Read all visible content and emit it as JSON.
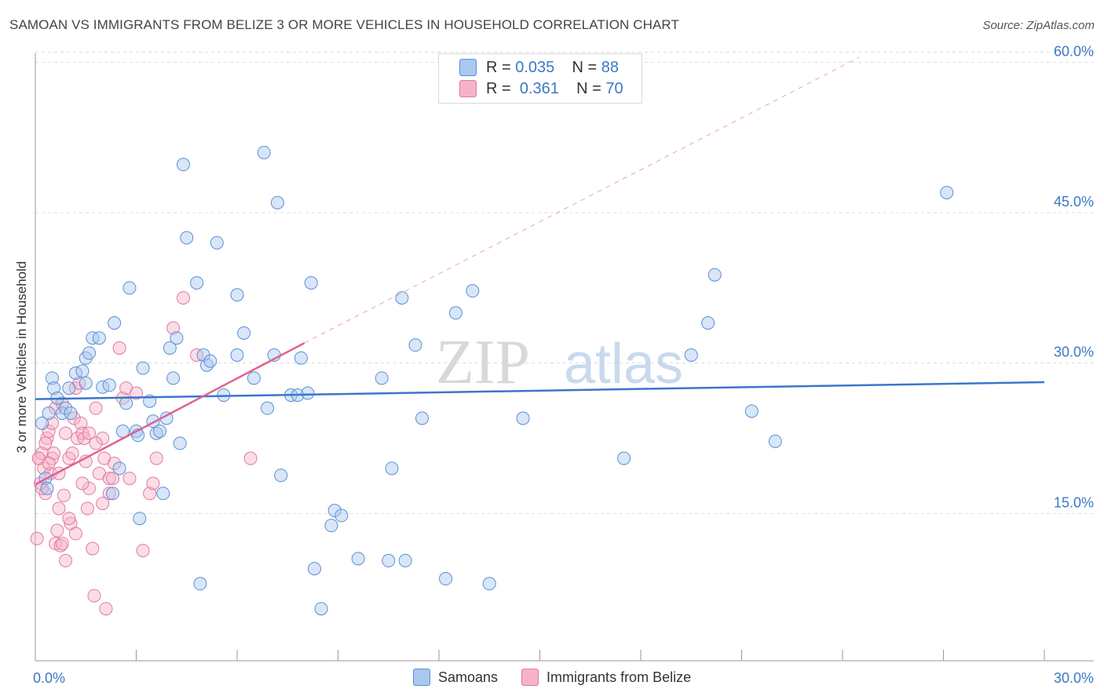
{
  "header": {
    "title": "SAMOAN VS IMMIGRANTS FROM BELIZE 3 OR MORE VEHICLES IN HOUSEHOLD CORRELATION CHART",
    "source": "Source: ZipAtlas.com"
  },
  "watermark": {
    "zip": "ZIP",
    "atlas": "atlas"
  },
  "legend": {
    "rows": [
      {
        "r_label": "R =",
        "r_value": "0.035",
        "n_label": "N =",
        "n_value": "88"
      },
      {
        "r_label": "R =",
        "r_value": "0.361",
        "n_label": "N =",
        "n_value": "70"
      }
    ]
  },
  "colors": {
    "blue_fill": "#a9c8f0",
    "blue_stroke": "#5b8fd4",
    "blue_line": "#3a76cc",
    "pink_fill": "#f6b3c8",
    "pink_stroke": "#e07aa0",
    "pink_line": "#e0628e",
    "grid": "#dddddd",
    "tick_label": "#3b78c4"
  },
  "chart_data": {
    "type": "scatter",
    "title": "SAMOAN VS IMMIGRANTS FROM BELIZE 3 OR MORE VEHICLES IN HOUSEHOLD CORRELATION CHART",
    "xlabel": "",
    "ylabel": "3 or more Vehicles in Household",
    "xlim": [
      0,
      30
    ],
    "ylim": [
      0,
      62
    ],
    "x_tick_labels": [
      {
        "value": 0,
        "label": "0.0%"
      },
      {
        "value": 30,
        "label": "30.0%"
      }
    ],
    "y_tick_labels": [
      {
        "value": 15,
        "label": "15.0%"
      },
      {
        "value": 30,
        "label": "30.0%"
      },
      {
        "value": 45,
        "label": "45.0%"
      },
      {
        "value": 60,
        "label": "60.0%"
      }
    ],
    "series": [
      {
        "name": "Samoans",
        "trend": {
          "x0": 0,
          "y0": 26.4,
          "x1": 30,
          "y1": 28.1
        },
        "points": [
          [
            0.2,
            24
          ],
          [
            0.3,
            18.5
          ],
          [
            0.35,
            17.5
          ],
          [
            0.4,
            25
          ],
          [
            0.5,
            28.5
          ],
          [
            0.55,
            27.5
          ],
          [
            0.65,
            26.5
          ],
          [
            0.8,
            25
          ],
          [
            0.9,
            25.5
          ],
          [
            1.0,
            27.5
          ],
          [
            1.05,
            25
          ],
          [
            1.2,
            29
          ],
          [
            1.5,
            28
          ],
          [
            1.4,
            29.2
          ],
          [
            1.5,
            30.5
          ],
          [
            1.6,
            31
          ],
          [
            1.7,
            32.5
          ],
          [
            1.9,
            32.5
          ],
          [
            2.0,
            27.6
          ],
          [
            2.2,
            27.8
          ],
          [
            2.3,
            17
          ],
          [
            2.35,
            34
          ],
          [
            2.5,
            19.5
          ],
          [
            2.6,
            23.2
          ],
          [
            2.7,
            26
          ],
          [
            2.8,
            37.5
          ],
          [
            3.0,
            23.2
          ],
          [
            3.05,
            22.8
          ],
          [
            3.1,
            14.5
          ],
          [
            3.2,
            29.5
          ],
          [
            3.4,
            26.2
          ],
          [
            3.5,
            24.2
          ],
          [
            3.6,
            23
          ],
          [
            3.7,
            23.2
          ],
          [
            3.8,
            17
          ],
          [
            3.9,
            24.5
          ],
          [
            4.0,
            31.5
          ],
          [
            4.1,
            28.5
          ],
          [
            4.2,
            32.5
          ],
          [
            4.3,
            22
          ],
          [
            4.4,
            49.8
          ],
          [
            4.5,
            42.5
          ],
          [
            4.8,
            38
          ],
          [
            4.9,
            8
          ],
          [
            5.0,
            30.8
          ],
          [
            5.1,
            29.8
          ],
          [
            5.2,
            30.2
          ],
          [
            5.4,
            42
          ],
          [
            5.6,
            26.8
          ],
          [
            6.0,
            36.8
          ],
          [
            6.0,
            30.8
          ],
          [
            6.2,
            33
          ],
          [
            6.5,
            28.5
          ],
          [
            6.8,
            51
          ],
          [
            6.9,
            25.5
          ],
          [
            7.1,
            30.8
          ],
          [
            7.2,
            46
          ],
          [
            7.3,
            18.8
          ],
          [
            7.6,
            26.8
          ],
          [
            7.8,
            26.8
          ],
          [
            7.9,
            30.5
          ],
          [
            8.1,
            27
          ],
          [
            8.2,
            38
          ],
          [
            8.3,
            9.5
          ],
          [
            8.5,
            5.5
          ],
          [
            8.8,
            13.8
          ],
          [
            8.9,
            15.3
          ],
          [
            9.1,
            14.8
          ],
          [
            9.6,
            10.5
          ],
          [
            10.3,
            28.5
          ],
          [
            10.5,
            10.3
          ],
          [
            10.6,
            19.5
          ],
          [
            10.9,
            36.5
          ],
          [
            11.0,
            10.3
          ],
          [
            11.3,
            31.8
          ],
          [
            11.5,
            24.5
          ],
          [
            12.2,
            8.5
          ],
          [
            12.5,
            35
          ],
          [
            13.0,
            37.2
          ],
          [
            13.5,
            8
          ],
          [
            14.5,
            24.5
          ],
          [
            17.5,
            20.5
          ],
          [
            19.5,
            30.8
          ],
          [
            20.0,
            34
          ],
          [
            20.2,
            38.8
          ],
          [
            21.3,
            25.2
          ],
          [
            22.0,
            22.2
          ],
          [
            27.1,
            47
          ]
        ]
      },
      {
        "name": "Immigrants from Belize",
        "trend": {
          "x0": 0,
          "y0": 17.9,
          "x1": 8,
          "y1": 32
        },
        "trend_ext": {
          "x0": 8,
          "y0": 32,
          "x1": 24.5,
          "y1": 60.5
        },
        "points": [
          [
            0.05,
            12.5
          ],
          [
            0.1,
            20.5
          ],
          [
            0.15,
            18
          ],
          [
            0.2,
            21
          ],
          [
            0.25,
            19.5
          ],
          [
            0.3,
            17
          ],
          [
            0.35,
            22.5
          ],
          [
            0.4,
            23.2
          ],
          [
            0.45,
            19
          ],
          [
            0.5,
            20.5
          ],
          [
            0.55,
            21
          ],
          [
            0.6,
            12
          ],
          [
            0.65,
            13.3
          ],
          [
            0.7,
            15.5
          ],
          [
            0.75,
            11.8
          ],
          [
            0.8,
            12
          ],
          [
            0.85,
            16.8
          ],
          [
            0.9,
            10.3
          ],
          [
            1.0,
            20.5
          ],
          [
            1.05,
            14
          ],
          [
            1.1,
            21
          ],
          [
            1.15,
            24.5
          ],
          [
            1.2,
            27.5
          ],
          [
            1.25,
            22.5
          ],
          [
            1.3,
            28
          ],
          [
            1.35,
            24
          ],
          [
            1.4,
            23
          ],
          [
            1.45,
            22.5
          ],
          [
            1.5,
            20.2
          ],
          [
            1.55,
            15.5
          ],
          [
            1.6,
            17.5
          ],
          [
            1.7,
            11.5
          ],
          [
            1.75,
            6.8
          ],
          [
            1.8,
            25.5
          ],
          [
            1.9,
            19
          ],
          [
            2.0,
            22.5
          ],
          [
            2.05,
            20.5
          ],
          [
            2.1,
            5.5
          ],
          [
            2.2,
            18.5
          ],
          [
            2.3,
            18.5
          ],
          [
            2.35,
            20
          ],
          [
            2.5,
            31.5
          ],
          [
            2.6,
            26.5
          ],
          [
            2.7,
            27.5
          ],
          [
            2.8,
            18.5
          ],
          [
            3.0,
            27
          ],
          [
            3.2,
            11.3
          ],
          [
            3.4,
            17
          ],
          [
            3.5,
            18
          ],
          [
            3.6,
            20.5
          ],
          [
            4.1,
            33.5
          ],
          [
            4.4,
            36.5
          ],
          [
            4.8,
            30.8
          ],
          [
            6.4,
            20.5
          ],
          [
            0.1,
            20.5
          ],
          [
            0.2,
            17.5
          ],
          [
            0.3,
            22
          ],
          [
            0.4,
            20
          ],
          [
            0.5,
            24
          ],
          [
            0.6,
            25.5
          ],
          [
            0.7,
            19
          ],
          [
            0.8,
            26
          ],
          [
            0.9,
            23
          ],
          [
            1.0,
            14.5
          ],
          [
            1.2,
            13
          ],
          [
            1.4,
            18
          ],
          [
            1.6,
            23
          ],
          [
            1.8,
            22
          ],
          [
            2.0,
            16
          ],
          [
            2.2,
            17
          ]
        ]
      }
    ],
    "legend_position": "top-center"
  },
  "bottom_legend": {
    "items": [
      "Samoans",
      "Immigrants from Belize"
    ]
  }
}
